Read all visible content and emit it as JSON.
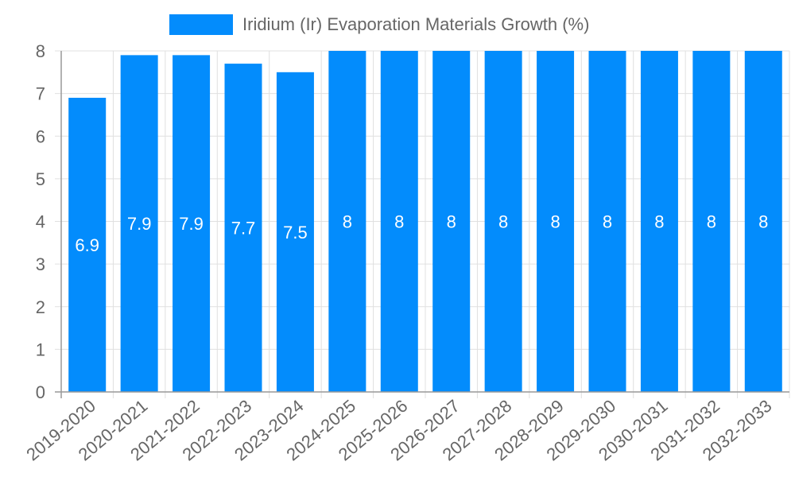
{
  "chart_data": {
    "type": "bar",
    "title": "",
    "legend": [
      "Iridium (Ir) Evaporation Materials Growth (%)"
    ],
    "legend_position": "top",
    "categories": [
      "2019-2020",
      "2020-2021",
      "2021-2022",
      "2022-2023",
      "2023-2024",
      "2024-2025",
      "2025-2026",
      "2026-2027",
      "2027-2028",
      "2028-2029",
      "2029-2030",
      "2030-2031",
      "2031-2032",
      "2032-2033"
    ],
    "series": [
      {
        "name": "Iridium (Ir) Evaporation Materials Growth (%)",
        "values": [
          6.9,
          7.9,
          7.9,
          7.7,
          7.5,
          8,
          8,
          8,
          8,
          8,
          8,
          8,
          8,
          8
        ],
        "color": "#038cfc"
      }
    ],
    "data_labels": [
      "6.9",
      "7.9",
      "7.9",
      "7.7",
      "7.5",
      "8",
      "8",
      "8",
      "8",
      "8",
      "8",
      "8",
      "8",
      "8"
    ],
    "xlabel": "",
    "ylabel": "",
    "ylim": [
      0,
      8
    ],
    "yticks": [
      0,
      1,
      2,
      3,
      4,
      5,
      6,
      7,
      8
    ],
    "grid": true
  },
  "legend": {
    "label": "Iridium (Ir) Evaporation Materials Growth (%)",
    "color": "#038cfc"
  }
}
